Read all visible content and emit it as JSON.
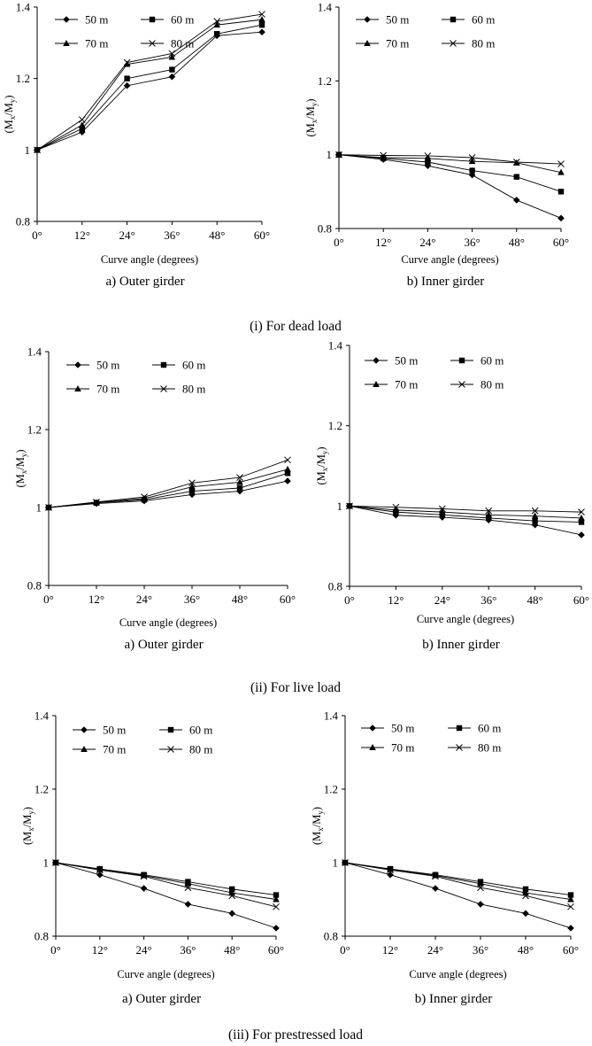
{
  "sections": [
    {
      "caption": "(i) For dead load"
    },
    {
      "caption": "(ii) For live load"
    },
    {
      "caption": "(iii) For prestressed load"
    }
  ],
  "chart_data": [
    {
      "type": "line",
      "subtitle": "a) Outer girder",
      "xlabel": "Curve angle (degrees)",
      "ylabel_main": "(M",
      "ylabel_sub1": "x",
      "ylabel_mid": "/M",
      "ylabel_sub2": "y",
      "ylabel_end": ")",
      "categories": [
        "0°",
        "12°",
        "24°",
        "36°",
        "48°",
        "60°"
      ],
      "yticks": [
        "0.8",
        "1",
        "1.2",
        "1.4"
      ],
      "ylim": [
        0.8,
        1.4
      ],
      "series": [
        {
          "name": "50 m",
          "marker": "diamond",
          "values": [
            1.0,
            1.05,
            1.18,
            1.205,
            1.32,
            1.33
          ]
        },
        {
          "name": "60 m",
          "marker": "square",
          "values": [
            1.0,
            1.06,
            1.2,
            1.225,
            1.325,
            1.35
          ]
        },
        {
          "name": "70 m",
          "marker": "triangle",
          "values": [
            1.0,
            1.07,
            1.24,
            1.26,
            1.35,
            1.365
          ]
        },
        {
          "name": "80 m",
          "marker": "x",
          "values": [
            1.0,
            1.085,
            1.245,
            1.27,
            1.36,
            1.38
          ]
        }
      ]
    },
    {
      "type": "line",
      "subtitle": "b) Inner girder",
      "xlabel": "Curve angle (degrees)",
      "ylabel_main": "(M",
      "ylabel_sub1": "x",
      "ylabel_mid": "/M",
      "ylabel_sub2": "y",
      "ylabel_end": ")",
      "categories": [
        "0°",
        "12°",
        "24°",
        "36°",
        "48°",
        "60°"
      ],
      "yticks": [
        "0.8",
        "1",
        "1.2",
        "1.4"
      ],
      "ylim": [
        0.8,
        1.4
      ],
      "series": [
        {
          "name": "50 m",
          "marker": "diamond",
          "values": [
            1.0,
            0.987,
            0.97,
            0.945,
            0.877,
            0.828
          ]
        },
        {
          "name": "60 m",
          "marker": "square",
          "values": [
            1.0,
            0.99,
            0.98,
            0.957,
            0.94,
            0.9
          ]
        },
        {
          "name": "70 m",
          "marker": "triangle",
          "values": [
            1.0,
            0.992,
            0.99,
            0.982,
            0.978,
            0.952
          ]
        },
        {
          "name": "80 m",
          "marker": "x",
          "values": [
            1.0,
            0.998,
            0.997,
            0.992,
            0.98,
            0.975
          ]
        }
      ]
    },
    {
      "type": "line",
      "subtitle": "a)  Outer girder",
      "xlabel": "Curve angle (degrees)",
      "ylabel_main": "(M",
      "ylabel_sub1": "x",
      "ylabel_mid": "/M",
      "ylabel_sub2": "y",
      "ylabel_end": ")",
      "categories": [
        "0°",
        "12°",
        "24°",
        "36°",
        "48°",
        "60°"
      ],
      "yticks": [
        "0.8",
        "1",
        "1.2",
        "1.4"
      ],
      "ylim": [
        0.8,
        1.4
      ],
      "series": [
        {
          "name": "50 m",
          "marker": "diamond",
          "values": [
            1.0,
            1.01,
            1.017,
            1.033,
            1.042,
            1.068
          ]
        },
        {
          "name": "60 m",
          "marker": "square",
          "values": [
            1.0,
            1.012,
            1.02,
            1.042,
            1.05,
            1.088
          ]
        },
        {
          "name": "70 m",
          "marker": "triangle",
          "values": [
            1.0,
            1.013,
            1.023,
            1.053,
            1.065,
            1.098
          ]
        },
        {
          "name": "80 m",
          "marker": "x",
          "values": [
            1.0,
            1.014,
            1.027,
            1.063,
            1.077,
            1.122
          ]
        }
      ]
    },
    {
      "type": "line",
      "subtitle": "b) Inner girder",
      "xlabel": "Curve angle (degrees)",
      "ylabel_main": "(M",
      "ylabel_sub1": "x",
      "ylabel_mid": "/M",
      "ylabel_sub2": "y",
      "ylabel_end": ")",
      "categories": [
        "0°",
        "12°",
        "24°",
        "36°",
        "48°",
        "60°"
      ],
      "yticks": [
        "0.8",
        "1",
        "1.2",
        "1.4"
      ],
      "ylim": [
        0.8,
        1.4
      ],
      "series": [
        {
          "name": "50 m",
          "marker": "diamond",
          "values": [
            1.0,
            0.977,
            0.972,
            0.965,
            0.953,
            0.928
          ]
        },
        {
          "name": "60 m",
          "marker": "square",
          "values": [
            1.0,
            0.985,
            0.978,
            0.97,
            0.963,
            0.96
          ]
        },
        {
          "name": "70 m",
          "marker": "triangle",
          "values": [
            1.0,
            0.99,
            0.985,
            0.978,
            0.975,
            0.97
          ]
        },
        {
          "name": "80 m",
          "marker": "x",
          "values": [
            1.0,
            0.997,
            0.993,
            0.988,
            0.988,
            0.985
          ]
        }
      ]
    },
    {
      "type": "line",
      "subtitle": "a)  Outer girder",
      "xlabel": "Curve angle (degrees)",
      "ylabel_main": "(M",
      "ylabel_sub1": "x",
      "ylabel_mid": "/M",
      "ylabel_sub2": "y",
      "ylabel_end": ")",
      "categories": [
        "0°",
        "12°",
        "24°",
        "36°",
        "48°",
        "60°"
      ],
      "yticks": [
        "0.8",
        "1",
        "1.2",
        "1.4"
      ],
      "ylim": [
        0.8,
        1.4
      ],
      "series": [
        {
          "name": "50 m",
          "marker": "diamond",
          "values": [
            1.0,
            0.967,
            0.93,
            0.887,
            0.862,
            0.822
          ]
        },
        {
          "name": "60 m",
          "marker": "square",
          "values": [
            1.0,
            0.983,
            0.967,
            0.948,
            0.928,
            0.912
          ]
        },
        {
          "name": "70 m",
          "marker": "triangle",
          "values": [
            1.0,
            0.982,
            0.965,
            0.943,
            0.918,
            0.9
          ]
        },
        {
          "name": "80 m",
          "marker": "x",
          "values": [
            1.0,
            0.98,
            0.963,
            0.932,
            0.91,
            0.88
          ]
        }
      ]
    },
    {
      "type": "line",
      "subtitle": "b) Inner girder",
      "xlabel": "Curve angle (degrees)",
      "ylabel_main": "(M",
      "ylabel_sub1": "x",
      "ylabel_mid": "/M",
      "ylabel_sub2": "y",
      "ylabel_end": ")",
      "categories": [
        "0°",
        "12°",
        "24°",
        "36°",
        "48°",
        "60°"
      ],
      "yticks": [
        "0.8",
        "1",
        "1.2",
        "1.4"
      ],
      "ylim": [
        0.8,
        1.4
      ],
      "series": [
        {
          "name": "50 m",
          "marker": "diamond",
          "values": [
            1.0,
            0.967,
            0.93,
            0.887,
            0.862,
            0.822
          ]
        },
        {
          "name": "60 m",
          "marker": "square",
          "values": [
            1.0,
            0.983,
            0.967,
            0.948,
            0.928,
            0.912
          ]
        },
        {
          "name": "70 m",
          "marker": "triangle",
          "values": [
            1.0,
            0.982,
            0.965,
            0.943,
            0.918,
            0.9
          ]
        },
        {
          "name": "80 m",
          "marker": "x",
          "values": [
            1.0,
            0.98,
            0.963,
            0.932,
            0.91,
            0.88
          ]
        }
      ]
    }
  ]
}
